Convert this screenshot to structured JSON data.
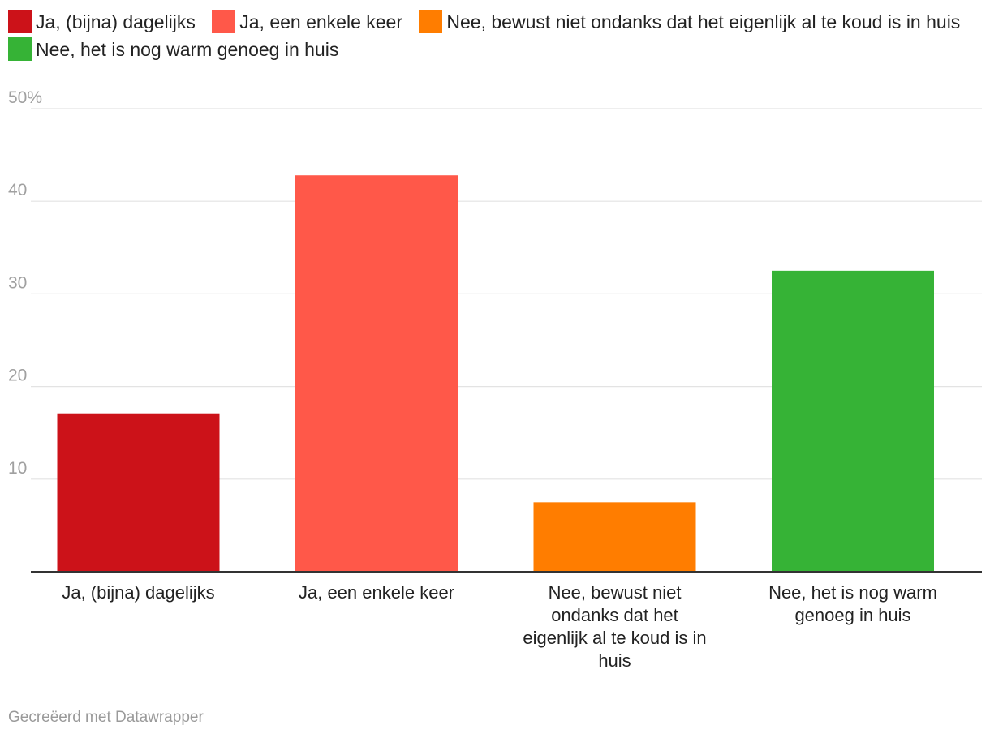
{
  "legend": [
    {
      "label": "Ja, (bijna) dagelijks",
      "color": "#cc1219"
    },
    {
      "label": "Ja, een enkele keer",
      "color": "#ff5849"
    },
    {
      "label": "Nee, bewust niet ondanks dat het eigenlijk al te koud is in huis",
      "color": "#ff7d00"
    },
    {
      "label": "Nee, het is nog warm genoeg in huis",
      "color": "#36b336"
    }
  ],
  "chart_data": {
    "type": "bar",
    "categories": [
      "Ja, (bijna) dagelijks",
      "Ja, een enkele keer",
      "Nee, bewust niet ondanks dat het eigenlijk al te koud is in huis",
      "Nee, het is nog warm genoeg in huis"
    ],
    "category_lines": [
      [
        "Ja, (bijna) dagelijks"
      ],
      [
        "Ja, een enkele keer"
      ],
      [
        "Nee, bewust niet",
        "ondanks dat het",
        "eigenlijk al te koud is in",
        "huis"
      ],
      [
        "Nee, het is nog warm",
        "genoeg in huis"
      ]
    ],
    "values": [
      17.1,
      42.8,
      7.5,
      32.5
    ],
    "colors": [
      "#cc1219",
      "#ff5849",
      "#ff7d00",
      "#36b336"
    ],
    "ylim": [
      0,
      50
    ],
    "yticks": [
      10,
      20,
      30,
      40,
      50
    ],
    "ytick_labels": [
      "10",
      "20",
      "30",
      "40",
      "50%"
    ],
    "title": "",
    "xlabel": "",
    "ylabel": "",
    "grid": true,
    "legend_position": "top"
  },
  "footer": {
    "credit": "Gecreëerd met Datawrapper"
  }
}
